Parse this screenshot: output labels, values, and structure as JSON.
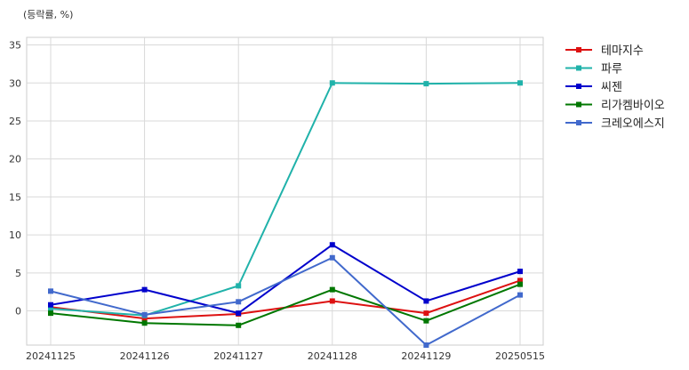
{
  "chart_data": {
    "type": "line",
    "unit_label": "(등락률, %)",
    "title": "",
    "xlabel": "",
    "ylabel": "",
    "categories": [
      "20241125",
      "20241126",
      "20241127",
      "20241128",
      "20241129",
      "20250515"
    ],
    "ylim": [
      -4.5,
      36
    ],
    "yticks": [
      0,
      5,
      10,
      15,
      20,
      25,
      30,
      35
    ],
    "grid": true,
    "legend_position": "outside-right",
    "series": [
      {
        "name": "테마지수",
        "color": "#dd1111",
        "values": [
          0.5,
          -1.0,
          -0.4,
          1.3,
          -0.3,
          4.0
        ]
      },
      {
        "name": "파루",
        "color": "#20b2aa",
        "values": [
          0.3,
          -0.6,
          3.3,
          30.0,
          29.9,
          30.0
        ]
      },
      {
        "name": "씨젠",
        "color": "#0000cc",
        "values": [
          0.8,
          2.8,
          -0.3,
          8.7,
          1.3,
          5.2
        ]
      },
      {
        "name": "리가켐바이오",
        "color": "#007700",
        "values": [
          -0.3,
          -1.6,
          -1.9,
          2.8,
          -1.3,
          3.5
        ]
      },
      {
        "name": "크레오에스지",
        "color": "#4169cc",
        "values": [
          2.6,
          -0.5,
          1.2,
          7.0,
          -4.5,
          2.1
        ]
      }
    ]
  }
}
